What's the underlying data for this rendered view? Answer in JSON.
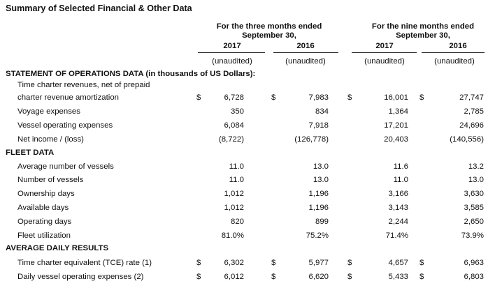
{
  "title": "Summary of Selected Financial & Other Data",
  "periods": {
    "three_months": [
      "For the three months ended",
      "September 30,"
    ],
    "nine_months": [
      "For the nine months ended",
      "September 30,"
    ]
  },
  "years": [
    "2017",
    "2016",
    "2017",
    "2016"
  ],
  "unaudited": [
    "(unaudited)",
    "(unaudited)",
    "(unaudited)",
    "(unaudited)"
  ],
  "sections": {
    "operations": "STATEMENT OF OPERATIONS DATA (in thousands of US Dollars):",
    "fleet": "FLEET DATA",
    "daily": "AVERAGE DAILY RESULTS"
  },
  "operations_rows": [
    {
      "label": "Time charter revenues, net of prepaid"
    },
    {
      "label": "charter revenue amortization",
      "dollar": true,
      "values": [
        "6,728",
        "7,983",
        "16,001",
        "27,747"
      ]
    },
    {
      "label": "Voyage expenses",
      "values": [
        "350",
        "834",
        "1,364",
        "2,785"
      ]
    },
    {
      "label": "Vessel operating expenses",
      "values": [
        "6,084",
        "7,918",
        "17,201",
        "24,696"
      ]
    },
    {
      "label": "Net  income / (loss)",
      "values": [
        "(8,722)",
        "(126,778)",
        "20,403",
        "(140,556)"
      ]
    }
  ],
  "fleet_rows": [
    {
      "label": "Average number of vessels",
      "values": [
        "11.0",
        "13.0",
        "11.6",
        "13.2"
      ]
    },
    {
      "label": "Number of vessels",
      "values": [
        "11.0",
        "13.0",
        "11.0",
        "13.0"
      ]
    },
    {
      "label": "Ownership days",
      "values": [
        "1,012",
        "1,196",
        "3,166",
        "3,630"
      ]
    },
    {
      "label": "Available days",
      "values": [
        "1,012",
        "1,196",
        "3,143",
        "3,585"
      ]
    },
    {
      "label": "Operating days",
      "values": [
        "820",
        "899",
        "2,244",
        "2,650"
      ]
    },
    {
      "label": "Fleet utilization",
      "values": [
        "81.0%",
        "75.2%",
        "71.4%",
        "73.9%"
      ]
    }
  ],
  "daily_rows": [
    {
      "label": "Time charter equivalent (TCE) rate (1)",
      "dollar": true,
      "values": [
        "6,302",
        "5,977",
        "4,657",
        "6,963"
      ]
    },
    {
      "label": "Daily vessel operating expenses (2)",
      "dollar": true,
      "values": [
        "6,012",
        "6,620",
        "5,433",
        "6,803"
      ]
    }
  ],
  "currency_symbol": "$"
}
